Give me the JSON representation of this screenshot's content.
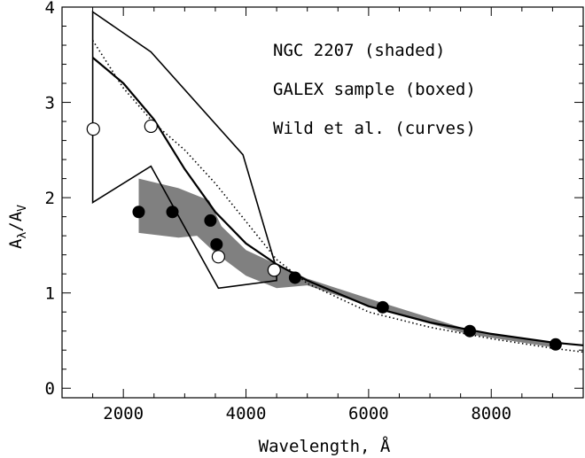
{
  "chart_data": {
    "type": "scatter",
    "xlabel": "Wavelength, Å",
    "ylabel_main": "A",
    "ylabel_sub1": "λ",
    "ylabel_sep": "/A",
    "ylabel_sub2": "V",
    "xlim": [
      1000,
      9500
    ],
    "ylim": [
      -0.1,
      4.0
    ],
    "x_ticks": [
      2000,
      4000,
      6000,
      8000
    ],
    "x_tick_labels": [
      "2000",
      "4000",
      "6000",
      "8000"
    ],
    "y_ticks": [
      0,
      1,
      2,
      3,
      4
    ],
    "y_tick_labels": [
      "0",
      "1",
      "2",
      "3",
      "4"
    ],
    "annotations": [
      "NGC 2207 (shaded)",
      "GALEX sample (boxed)",
      "Wild et al. (curves)"
    ],
    "shaded_region": [
      [
        2250,
        2.2
      ],
      [
        2900,
        2.1
      ],
      [
        3400,
        1.97
      ],
      [
        3600,
        1.7
      ],
      [
        4000,
        1.45
      ],
      [
        4500,
        1.3
      ],
      [
        5000,
        1.15
      ],
      [
        6200,
        0.9
      ],
      [
        7600,
        0.62
      ],
      [
        9100,
        0.47
      ],
      [
        9100,
        0.42
      ],
      [
        7600,
        0.57
      ],
      [
        6200,
        0.82
      ],
      [
        5000,
        1.08
      ],
      [
        4500,
        1.05
      ],
      [
        4000,
        1.18
      ],
      [
        3500,
        1.42
      ],
      [
        3200,
        1.6
      ],
      [
        2900,
        1.58
      ],
      [
        2250,
        1.63
      ]
    ],
    "box_outline": [
      [
        1500,
        3.95
      ],
      [
        2450,
        3.53
      ],
      [
        3950,
        2.45
      ],
      [
        4500,
        1.25
      ],
      [
        4500,
        1.13
      ],
      [
        3550,
        1.05
      ],
      [
        2450,
        2.33
      ],
      [
        1500,
        1.95
      ]
    ],
    "solid_curve": {
      "x": [
        1500,
        2000,
        2500,
        3000,
        3500,
        4000,
        4500,
        5000,
        6000,
        7000,
        8000,
        9000,
        9500
      ],
      "y": [
        3.47,
        3.2,
        2.82,
        2.3,
        1.85,
        1.52,
        1.3,
        1.13,
        0.86,
        0.69,
        0.57,
        0.48,
        0.45
      ]
    },
    "dotted_curve": {
      "x": [
        1500,
        2000,
        2500,
        3000,
        3500,
        4000,
        4500,
        5000,
        6000,
        7000,
        8000,
        9000,
        9500
      ],
      "y": [
        3.65,
        3.15,
        2.78,
        2.5,
        2.15,
        1.75,
        1.35,
        1.1,
        0.8,
        0.64,
        0.52,
        0.42,
        0.38
      ]
    },
    "filled_points": {
      "x": [
        2250,
        2800,
        3420,
        3520,
        4800,
        6230,
        7650,
        9050
      ],
      "y": [
        1.85,
        1.85,
        1.76,
        1.51,
        1.16,
        0.85,
        0.6,
        0.46
      ]
    },
    "open_points": {
      "x": [
        1510,
        2450,
        3550,
        4460
      ],
      "y": [
        2.72,
        2.75,
        1.38,
        1.24
      ]
    },
    "grid": false,
    "colors": {
      "shaded": "#808080",
      "line": "#000000",
      "background": "#ffffff"
    }
  }
}
